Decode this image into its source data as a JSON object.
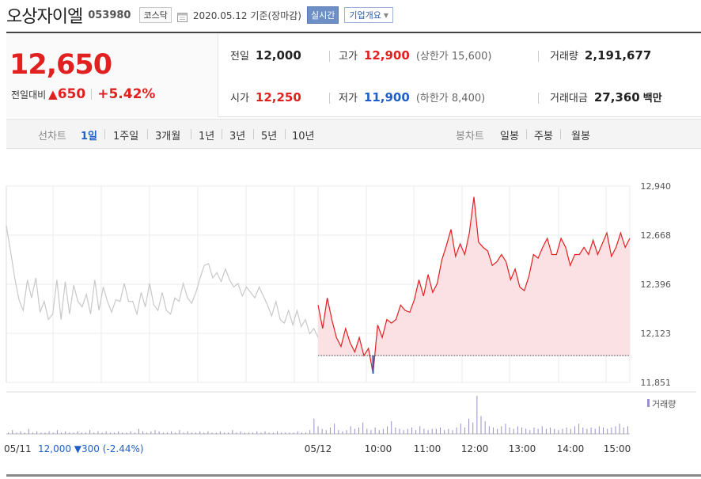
{
  "header": {
    "name": "오상자이엘",
    "code": "053980",
    "market": "코스닥",
    "date": "2020.05.12",
    "date_suffix": "기준(장마감)",
    "live_label": "실시간",
    "corp_label": "기업개요"
  },
  "summary": {
    "price": "12,650",
    "change_label": "전일대비",
    "change_amount": "650",
    "change_pct": "+5.42%",
    "prev_close_label": "전일",
    "prev_close": "12,000",
    "open_label": "시가",
    "open": "12,250",
    "high_label": "고가",
    "high": "12,900",
    "upper_limit_label": "(상한가 15,600)",
    "low_label": "저가",
    "low": "11,900",
    "lower_limit_label": "(하한가 8,400)",
    "volume_label": "거래량",
    "volume": "2,191,677",
    "value_label": "거래대금",
    "value": "27,360",
    "value_unit": "백만"
  },
  "tabs": {
    "line_label": "선차트",
    "line": [
      "1일",
      "1주일",
      "3개월",
      "1년",
      "3년",
      "5년",
      "10년"
    ],
    "active": "1일",
    "candle_label": "봉차트",
    "candle": [
      "일봉",
      "주봉",
      "월봉"
    ]
  },
  "colors": {
    "up": "#e12020",
    "down": "#1f5fc7",
    "prev": "#c8c8c8",
    "area": "#fbe1e3",
    "volume": "#9a8fc8"
  },
  "chart_data": {
    "type": "line",
    "y_ticks": [
      "12,940",
      "12,668",
      "12,396",
      "12,123",
      "11,851"
    ],
    "ylim": [
      11851,
      12940
    ],
    "base_value": 12000,
    "volume_label": "거래량",
    "prev_day_label": "05/11",
    "prev_day_close": "12,000",
    "prev_day_change": "▼300",
    "prev_day_pct": "(-2.44%)",
    "x_labels": [
      "05/12",
      "10:00",
      "11:00",
      "12:00",
      "13:00",
      "14:00",
      "15:00"
    ],
    "prev_day_series": [
      12720,
      12580,
      12430,
      12310,
      12250,
      12420,
      12320,
      12430,
      12240,
      12300,
      12200,
      12230,
      12420,
      12200,
      12410,
      12230,
      12390,
      12300,
      12270,
      12340,
      12230,
      12420,
      12250,
      12380,
      12300,
      12240,
      12310,
      12300,
      12400,
      12300,
      12300,
      12230,
      12350,
      12270,
      12400,
      12280,
      12250,
      12350,
      12250,
      12230,
      12320,
      12300,
      12400,
      12320,
      12290,
      12350,
      12430,
      12500,
      12510,
      12430,
      12460,
      12410,
      12480,
      12420,
      12380,
      12400,
      12330,
      12380,
      12350,
      12320,
      12380,
      12330,
      12280,
      12220,
      12300,
      12200,
      12180,
      12250,
      12170,
      12250,
      12160,
      12200,
      12120,
      12150,
      12100
    ],
    "today_series": [
      12280,
      12150,
      12320,
      12200,
      12100,
      12050,
      12150,
      12070,
      12020,
      12100,
      12000,
      12040,
      11900,
      12170,
      12100,
      12200,
      12180,
      12200,
      12280,
      12250,
      12240,
      12310,
      12420,
      12330,
      12450,
      12350,
      12400,
      12530,
      12610,
      12700,
      12550,
      12620,
      12560,
      12680,
      12880,
      12630,
      12600,
      12580,
      12500,
      12520,
      12560,
      12520,
      12420,
      12480,
      12380,
      12360,
      12440,
      12560,
      12540,
      12600,
      12650,
      12560,
      12560,
      12650,
      12600,
      12500,
      12560,
      12560,
      12600,
      12560,
      12640,
      12560,
      12620,
      12680,
      12550,
      12600,
      12680,
      12600,
      12650
    ],
    "volume": [
      1,
      3,
      1,
      2,
      1,
      4,
      1,
      2,
      1,
      1,
      2,
      1,
      3,
      1,
      2,
      1,
      1,
      2,
      1,
      1,
      3,
      1,
      2,
      1,
      2,
      1,
      1,
      2,
      1,
      1,
      2,
      1,
      4,
      2,
      1,
      2,
      3,
      2,
      1,
      1,
      2,
      1,
      3,
      1,
      2,
      1,
      1,
      2,
      1,
      2,
      1,
      1,
      2,
      1,
      1,
      3,
      1,
      2,
      1,
      1,
      1,
      2,
      1,
      2,
      1,
      1,
      2,
      1,
      1,
      1,
      1,
      2,
      1,
      1,
      3,
      12,
      6,
      4,
      3,
      5,
      8,
      3,
      2,
      3,
      6,
      4,
      5,
      9,
      4,
      3,
      5,
      3,
      4,
      6,
      10,
      5,
      4,
      3,
      4,
      5,
      3,
      6,
      4,
      3,
      4,
      4,
      5,
      3,
      4,
      3,
      5,
      8,
      5,
      12,
      9,
      30,
      14,
      10,
      6,
      5,
      4,
      6,
      8,
      5,
      4,
      6,
      5,
      4,
      3,
      5,
      4,
      6,
      4,
      5,
      4,
      3,
      4,
      5,
      4,
      6,
      8,
      5,
      4,
      5,
      4,
      6,
      5,
      4,
      5,
      6,
      8,
      5,
      6
    ]
  }
}
